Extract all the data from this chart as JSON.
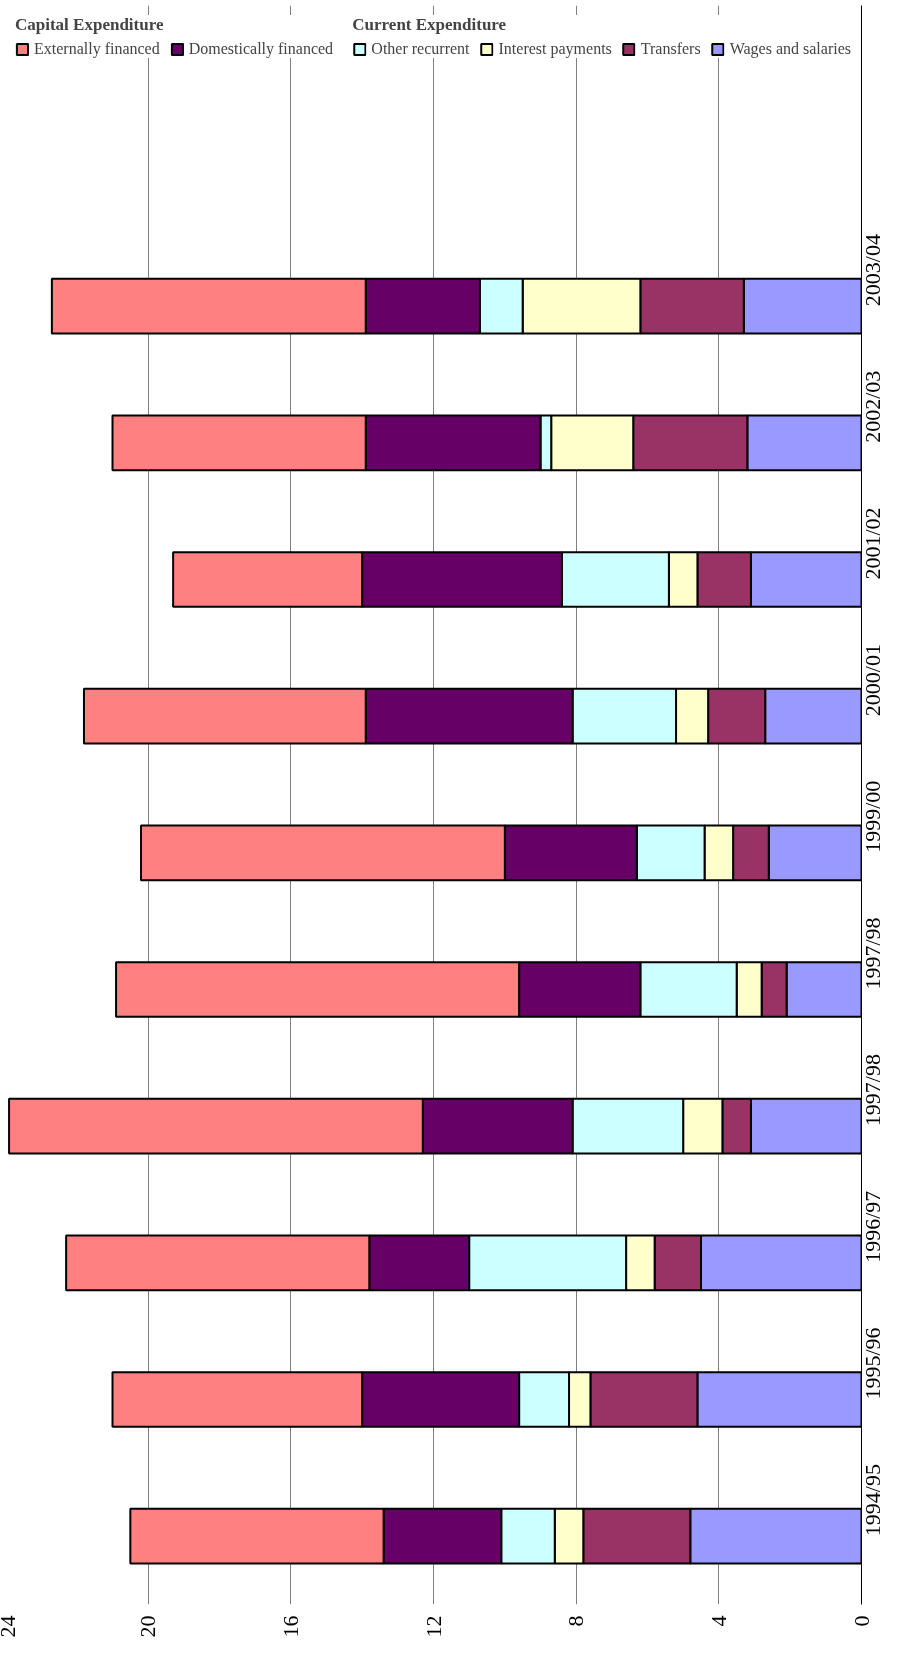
{
  "chart_data": {
    "type": "bar",
    "stacked": true,
    "orientation": "horizontal",
    "categories": [
      "2003/04",
      "2002/03",
      "2001/02",
      "2000/01",
      "1999/00",
      "1997/98",
      "1997/98",
      "1996/97",
      "1995/96",
      "1994/95"
    ],
    "series": [
      {
        "name": "Wages and salaries",
        "color": "#9999ff",
        "values": [
          3.3,
          3.2,
          3.1,
          2.7,
          2.6,
          2.1,
          3.1,
          4.5,
          4.6,
          4.8
        ]
      },
      {
        "name": "Transfers",
        "color": "#993366",
        "values": [
          2.9,
          3.2,
          1.5,
          1.6,
          1.0,
          0.7,
          0.8,
          1.3,
          3.0,
          3.0
        ]
      },
      {
        "name": "Interest payments",
        "color": "#ffffcc",
        "values": [
          3.3,
          2.3,
          0.8,
          0.9,
          0.8,
          0.7,
          1.1,
          0.8,
          0.6,
          0.8
        ]
      },
      {
        "name": "Other recurrent",
        "color": "#ccffff",
        "values": [
          1.2,
          0.3,
          3.0,
          2.9,
          1.9,
          2.7,
          3.1,
          4.4,
          1.4,
          1.5
        ]
      },
      {
        "name": "Domestically financed",
        "color": "#660066",
        "values": [
          3.2,
          4.9,
          5.6,
          5.8,
          3.7,
          3.4,
          4.2,
          2.8,
          4.4,
          3.3
        ]
      },
      {
        "name": "Externally financed",
        "color": "#ff8080",
        "values": [
          8.8,
          7.1,
          5.3,
          7.9,
          10.2,
          11.3,
          11.6,
          8.5,
          7.0,
          7.1
        ]
      }
    ],
    "xlim": [
      24,
      0
    ],
    "xticks": [
      0,
      4,
      8,
      12,
      16,
      20,
      24
    ],
    "grid": "x",
    "legend": "top",
    "annotations": [
      "Capital Expenditure",
      "Current Expenditure"
    ]
  }
}
